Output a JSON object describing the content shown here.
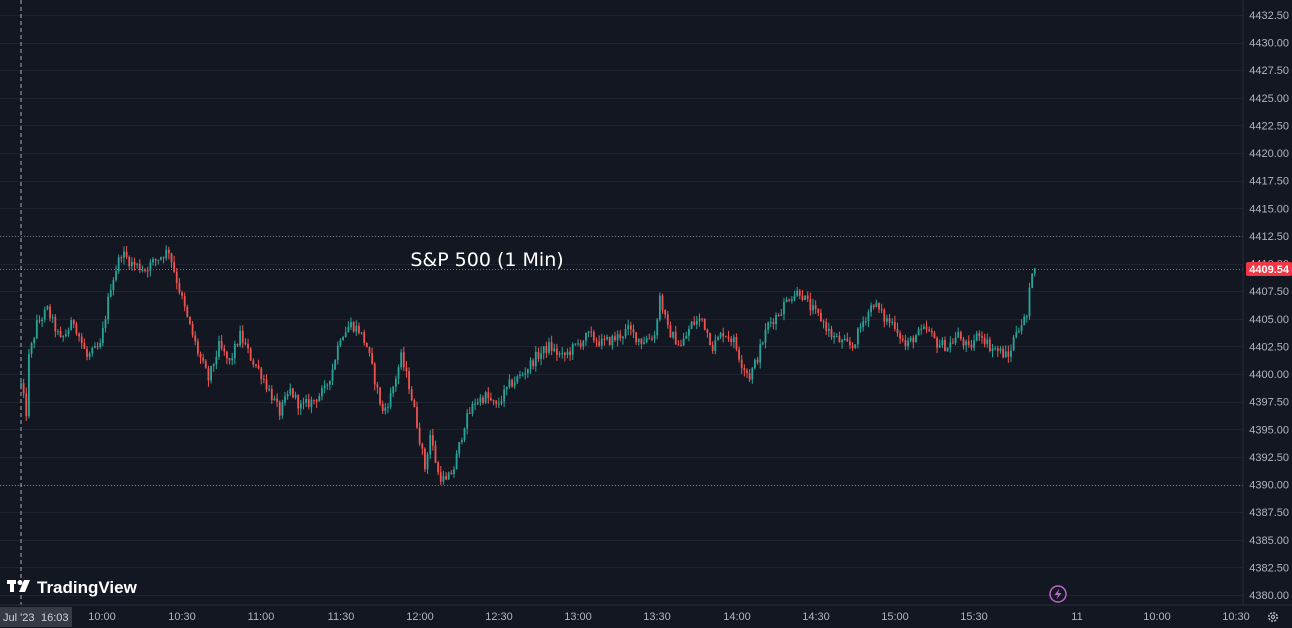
{
  "chart_data": {
    "type": "candlestick",
    "title": "S&P 500 (1 Min)",
    "watermark": "TradingView",
    "last_price": "4409.54",
    "price_axis": {
      "min": 4380.0,
      "max": 4432.5,
      "step": 2.5,
      "tick_labels": [
        "4432.50",
        "4430.00",
        "4427.50",
        "4425.00",
        "4422.50",
        "4420.00",
        "4417.50",
        "4415.00",
        "4412.50",
        "4410.00",
        "4407.50",
        "4405.00",
        "4402.50",
        "4400.00",
        "4397.50",
        "4395.00",
        "4392.50",
        "4390.00",
        "4387.50",
        "4385.00",
        "4382.50",
        "4380.00"
      ]
    },
    "time_axis": {
      "labels": [
        "10:00",
        "10:30",
        "11:00",
        "11:30",
        "12:00",
        "12:30",
        "13:00",
        "13:30",
        "14:00",
        "14:30",
        "15:00",
        "15:30",
        "11",
        "10:00",
        "10:30"
      ],
      "crosshair_date_label": "Jul '23",
      "crosshair_time_label": "16:03"
    },
    "reference_lines": [
      4412.5,
      4409.54,
      4390.0
    ],
    "session_outline": [
      [
        "09:30",
        4399.0
      ],
      [
        "09:32",
        4396.5
      ],
      [
        "09:33",
        4401.5
      ],
      [
        "09:36",
        4404.5
      ],
      [
        "09:40",
        4405.8
      ],
      [
        "09:45",
        4403.0
      ],
      [
        "09:50",
        4404.8
      ],
      [
        "09:55",
        4401.5
      ],
      [
        "10:00",
        4402.5
      ],
      [
        "10:04",
        4408.0
      ],
      [
        "10:08",
        4411.0
      ],
      [
        "10:12",
        4410.0
      ],
      [
        "10:17",
        4409.5
      ],
      [
        "10:22",
        4410.5
      ],
      [
        "10:26",
        4411.2
      ],
      [
        "10:29",
        4408.5
      ],
      [
        "10:33",
        4405.0
      ],
      [
        "10:37",
        4402.0
      ],
      [
        "10:41",
        4399.5
      ],
      [
        "10:45",
        4402.5
      ],
      [
        "10:49",
        4401.0
      ],
      [
        "10:53",
        4403.5
      ],
      [
        "10:57",
        4401.5
      ],
      [
        "11:01",
        4400.0
      ],
      [
        "11:05",
        4398.0
      ],
      [
        "11:08",
        4396.5
      ],
      [
        "11:12",
        4398.5
      ],
      [
        "11:16",
        4397.0
      ],
      [
        "11:20",
        4397.5
      ],
      [
        "11:25",
        4398.5
      ],
      [
        "11:28",
        4400.5
      ],
      [
        "11:31",
        4403.5
      ],
      [
        "11:35",
        4404.5
      ],
      [
        "11:38",
        4404.0
      ],
      [
        "11:41",
        4402.5
      ],
      [
        "11:44",
        4399.5
      ],
      [
        "11:47",
        4396.5
      ],
      [
        "11:50",
        4398.0
      ],
      [
        "11:54",
        4401.5
      ],
      [
        "11:57",
        4399.0
      ],
      [
        "12:00",
        4395.5
      ],
      [
        "12:03",
        4391.5
      ],
      [
        "12:05",
        4394.5
      ],
      [
        "12:08",
        4391.0
      ],
      [
        "12:11",
        4390.2
      ],
      [
        "12:14",
        4391.5
      ],
      [
        "12:18",
        4395.5
      ],
      [
        "12:22",
        4397.5
      ],
      [
        "12:26",
        4398.0
      ],
      [
        "12:30",
        4397.0
      ],
      [
        "12:35",
        4399.0
      ],
      [
        "12:40",
        4400.0
      ],
      [
        "12:45",
        4401.5
      ],
      [
        "12:50",
        4402.5
      ],
      [
        "12:55",
        4401.5
      ],
      [
        "13:00",
        4402.5
      ],
      [
        "13:05",
        4403.5
      ],
      [
        "13:10",
        4402.8
      ],
      [
        "13:15",
        4403.2
      ],
      [
        "13:20",
        4404.0
      ],
      [
        "13:25",
        4403.0
      ],
      [
        "13:30",
        4403.5
      ],
      [
        "13:32",
        4407.0
      ],
      [
        "13:35",
        4404.0
      ],
      [
        "13:40",
        4402.5
      ],
      [
        "13:44",
        4404.5
      ],
      [
        "13:48",
        4405.0
      ],
      [
        "13:52",
        4402.5
      ],
      [
        "13:56",
        4403.8
      ],
      [
        "14:00",
        4403.0
      ],
      [
        "14:03",
        4401.0
      ],
      [
        "14:06",
        4399.8
      ],
      [
        "14:09",
        4401.5
      ],
      [
        "14:13",
        4404.5
      ],
      [
        "14:17",
        4405.5
      ],
      [
        "14:21",
        4407.0
      ],
      [
        "14:25",
        4407.5
      ],
      [
        "14:29",
        4406.0
      ],
      [
        "14:33",
        4405.0
      ],
      [
        "14:37",
        4403.5
      ],
      [
        "14:41",
        4402.8
      ],
      [
        "14:45",
        4402.5
      ],
      [
        "14:49",
        4404.8
      ],
      [
        "14:53",
        4406.5
      ],
      [
        "14:57",
        4405.0
      ],
      [
        "15:01",
        4404.5
      ],
      [
        "15:05",
        4402.5
      ],
      [
        "15:09",
        4403.5
      ],
      [
        "15:13",
        4404.0
      ],
      [
        "15:17",
        4402.8
      ],
      [
        "15:21",
        4402.5
      ],
      [
        "15:25",
        4403.5
      ],
      [
        "15:29",
        4402.2
      ],
      [
        "15:33",
        4403.8
      ],
      [
        "15:37",
        4402.5
      ],
      [
        "15:41",
        4402.0
      ],
      [
        "15:44",
        4401.5
      ],
      [
        "15:47",
        4404.0
      ],
      [
        "15:51",
        4405.2
      ],
      [
        "15:53",
        4409.5
      ],
      [
        "15:54",
        4409.54
      ]
    ]
  },
  "colors": {
    "background": "#131722",
    "grid": "#1f2330",
    "up": "#26a69a",
    "down": "#ef5350",
    "crosshair": "#d1d4dc",
    "badge": "#f23645",
    "axis_text": "#b2b5be",
    "accent_icon": "#ba68c8"
  },
  "icons": {
    "logo": "tradingview-logo-icon",
    "flash": "lightning-icon",
    "settings": "gear-icon"
  }
}
